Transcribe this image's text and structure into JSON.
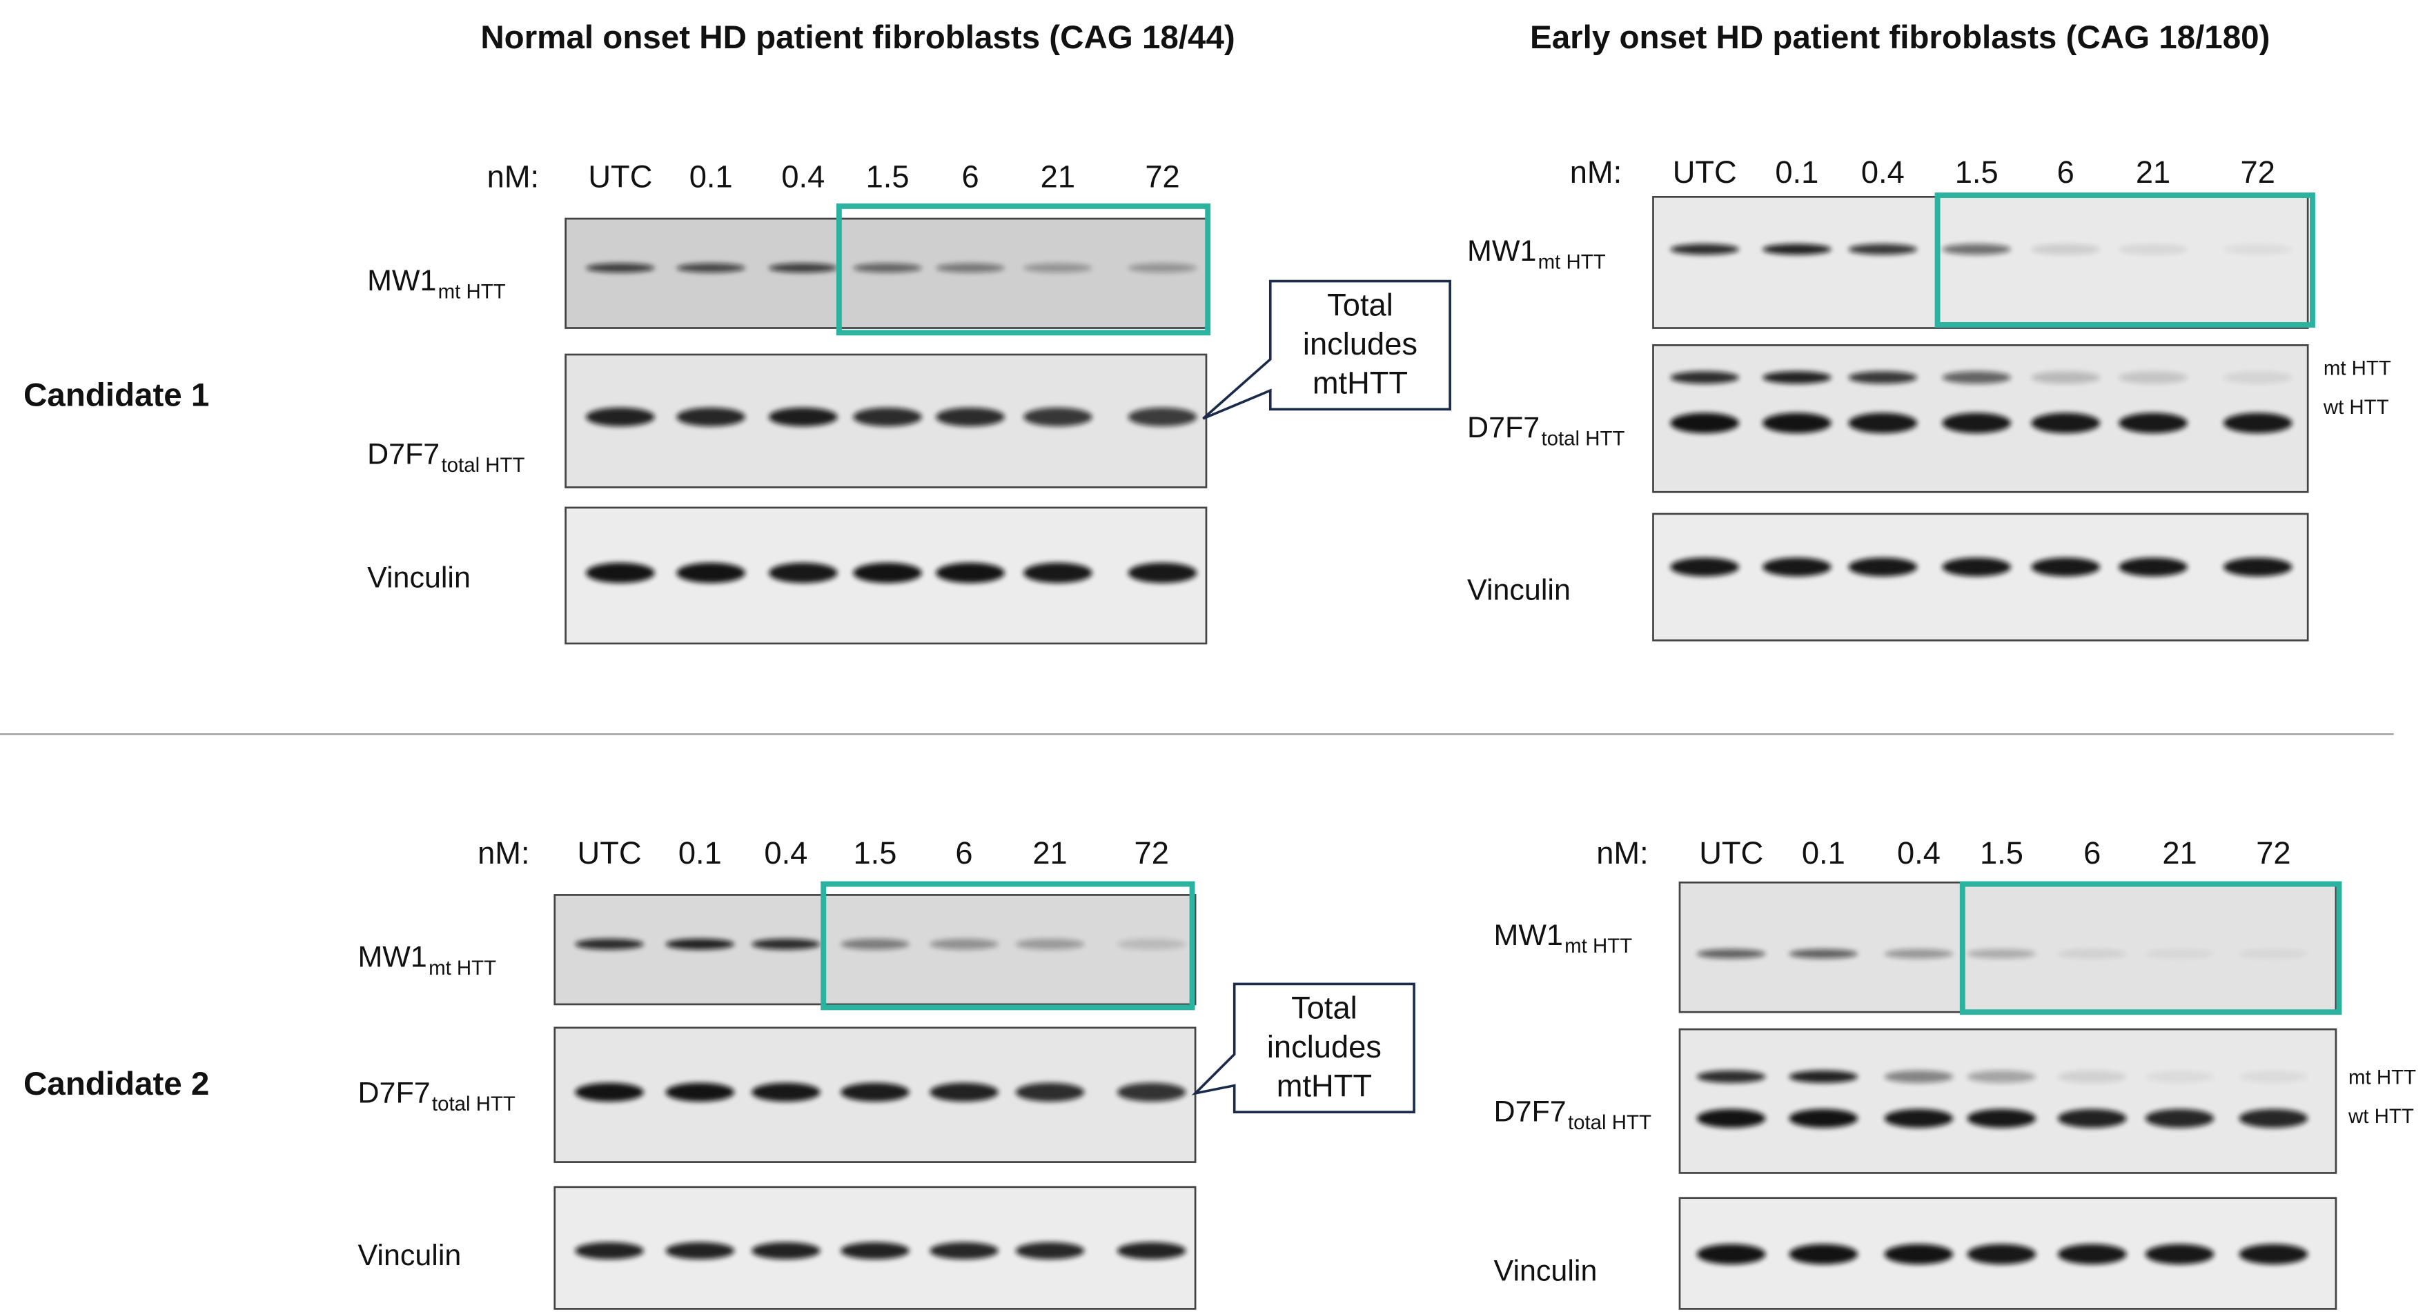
{
  "columns": [
    {
      "title": "Normal onset HD patient fibroblasts (CAG 18/44)"
    },
    {
      "title": "Early onset HD patient fibroblasts (CAG 18/180)"
    }
  ],
  "rows": [
    {
      "label": "Candidate 1"
    },
    {
      "label": "Candidate 2"
    }
  ],
  "lanes": {
    "unit": "nM:",
    "labels": [
      "UTC",
      "0.1",
      "0.4",
      "1.5",
      "6",
      "21",
      "72"
    ]
  },
  "blots": {
    "mw1": {
      "name": "MW1",
      "sub": "mt HTT"
    },
    "d7f7": {
      "name": "D7F7",
      "sub": "total HTT"
    },
    "vinculin": {
      "name": "Vinculin"
    }
  },
  "callout": {
    "lines": [
      "Total",
      "includes",
      "mtHTT"
    ]
  },
  "band_labels": [
    "mt HTT",
    "wt HTT"
  ]
}
